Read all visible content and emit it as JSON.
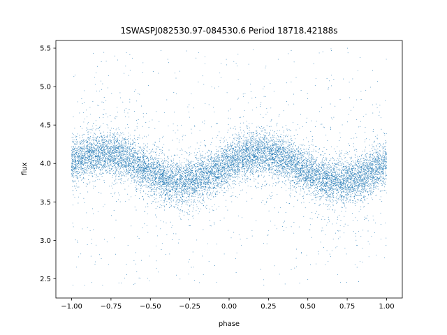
{
  "chart_data": {
    "type": "scatter",
    "title": "1SWASPJ082530.97-084530.6 Period 18718.42188s",
    "xlabel": "phase",
    "ylabel": "flux",
    "xlim": [
      -1.1,
      1.1
    ],
    "ylim": [
      2.25,
      5.6
    ],
    "xticks": [
      -1.0,
      -0.75,
      -0.5,
      -0.25,
      0.0,
      0.25,
      0.5,
      0.75,
      1.0
    ],
    "xtick_labels": [
      "−1.00",
      "−0.75",
      "−0.50",
      "−0.25",
      "0.00",
      "0.25",
      "0.50",
      "0.75",
      "1.00"
    ],
    "yticks": [
      2.5,
      3.0,
      3.5,
      4.0,
      4.5,
      5.0,
      5.5
    ],
    "ytick_labels": [
      "2.5",
      "3.0",
      "3.5",
      "4.0",
      "4.5",
      "5.0",
      "5.5"
    ],
    "grid": false,
    "marker_color": "#1f77b4",
    "series": [
      {
        "x_range": [
          -1.0,
          1.0
        ],
        "model": "sinusoid",
        "mean_flux": 3.95,
        "amplitude": 0.19,
        "period_in_phase": 1.0,
        "peak_phases": [
          -0.8,
          0.2
        ],
        "trough_phases": [
          -0.3,
          0.7
        ],
        "core_scatter_sd": 0.14,
        "outlier_range": [
          2.4,
          5.5
        ]
      }
    ]
  }
}
